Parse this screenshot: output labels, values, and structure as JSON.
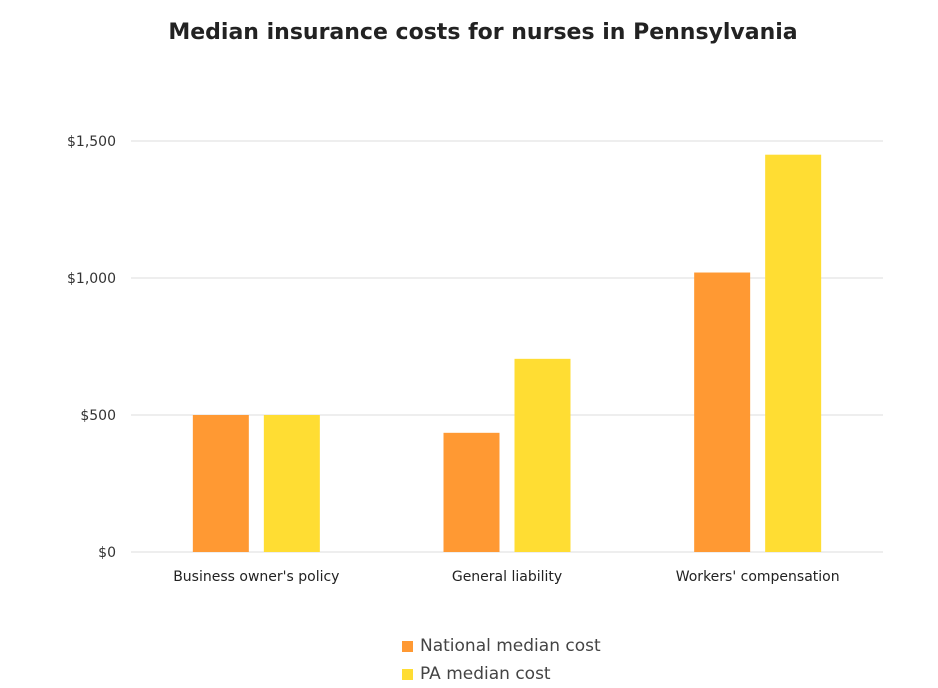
{
  "chart_data": {
    "type": "bar",
    "title": "Median insurance costs for nurses in Pennsylvania",
    "categories": [
      "Business owner's policy",
      "General liability",
      "Workers' compensation"
    ],
    "series": [
      {
        "name": "National median cost",
        "values": [
          500,
          435,
          1020
        ],
        "color": "#FF9933"
      },
      {
        "name": "PA median cost",
        "values": [
          500,
          705,
          1450
        ],
        "color": "#FFDD33"
      }
    ],
    "ylim": [
      0,
      1500
    ],
    "yticks": [
      {
        "value": 0,
        "label": "$0"
      },
      {
        "value": 500,
        "label": "$500"
      },
      {
        "value": 1000,
        "label": "$1,000"
      },
      {
        "value": 1500,
        "label": "$1,500"
      }
    ],
    "grid": true,
    "legend_position": "bottom"
  }
}
